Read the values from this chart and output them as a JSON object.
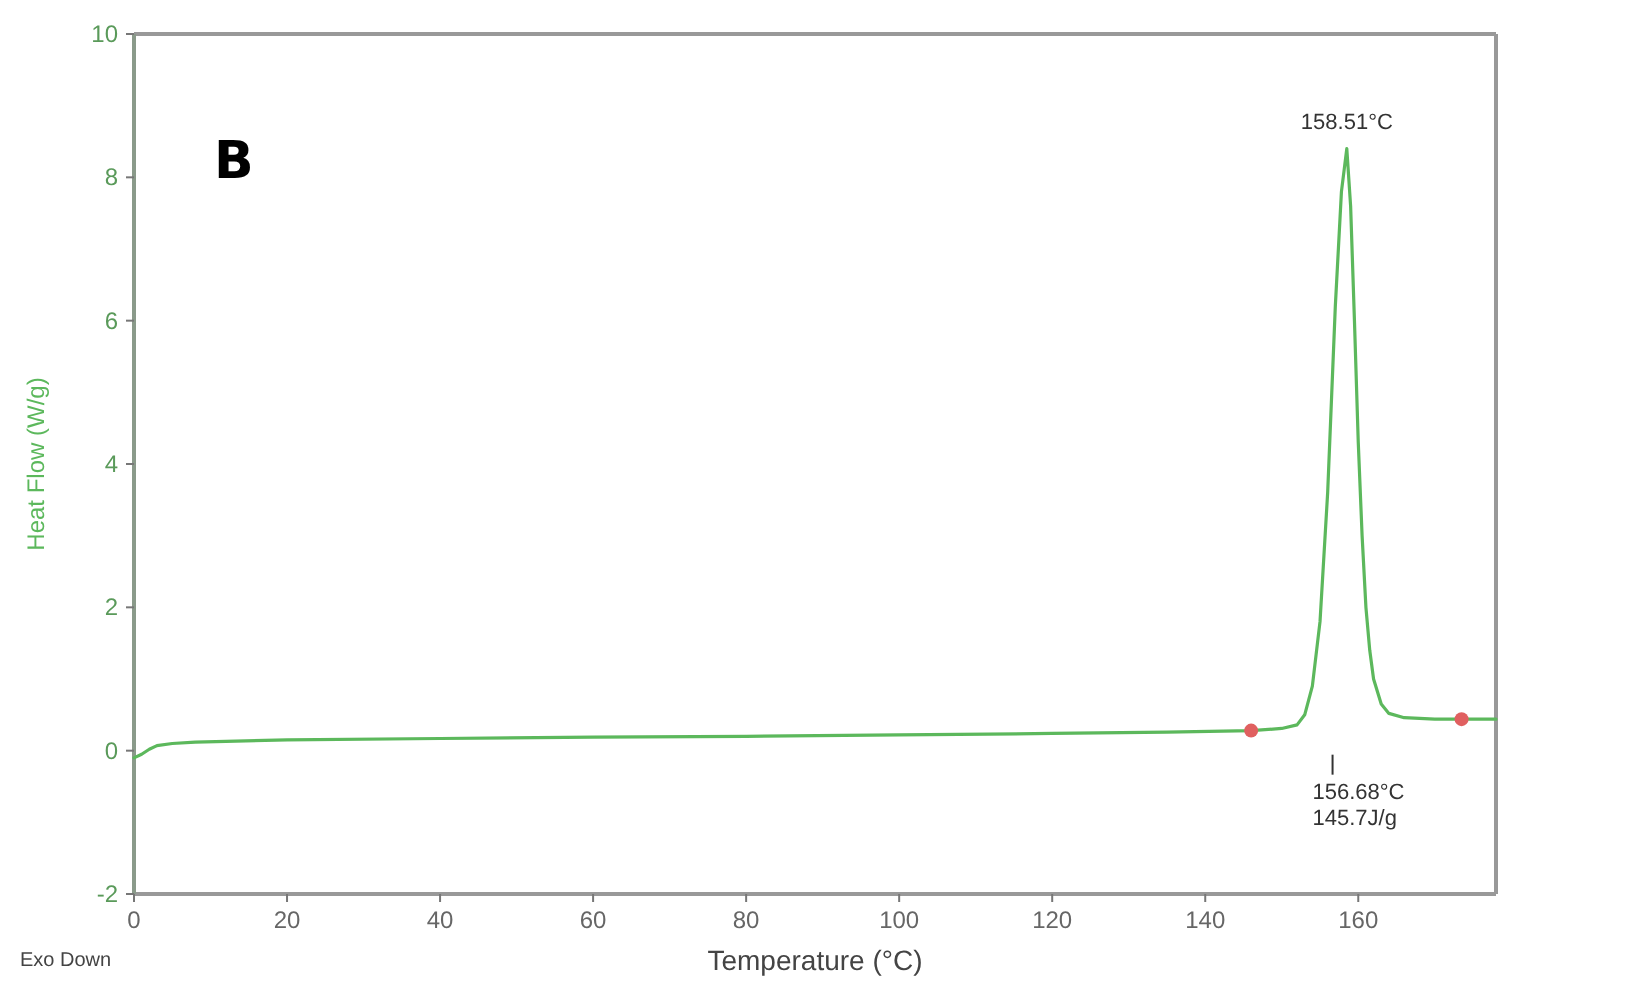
{
  "chart_data": {
    "type": "line",
    "xlabel": "Temperature (°C)",
    "ylabel": "Heat Flow (W/g)",
    "xlim": [
      0,
      178
    ],
    "ylim": [
      -2,
      10
    ],
    "xticks": [
      0,
      20,
      40,
      60,
      80,
      100,
      120,
      140,
      160
    ],
    "yticks": [
      -2,
      0,
      2,
      4,
      6,
      8,
      10
    ],
    "grid": false,
    "series": [
      {
        "color": "#5cb85c",
        "x": [
          0,
          1,
          2,
          3,
          5,
          8,
          12,
          20,
          40,
          60,
          80,
          100,
          120,
          135,
          146,
          150,
          152,
          153,
          154,
          155,
          156,
          157,
          157.8,
          158.5,
          159,
          159.5,
          160,
          160.5,
          161,
          161.5,
          162,
          163,
          164,
          166,
          170,
          174,
          178
        ],
        "values": [
          -0.1,
          -0.05,
          0.02,
          0.07,
          0.1,
          0.12,
          0.13,
          0.15,
          0.17,
          0.19,
          0.2,
          0.22,
          0.24,
          0.26,
          0.28,
          0.31,
          0.36,
          0.5,
          0.9,
          1.8,
          3.6,
          6.2,
          7.8,
          8.4,
          7.6,
          6.0,
          4.3,
          3.0,
          2.0,
          1.4,
          1.0,
          0.65,
          0.52,
          0.46,
          0.44,
          0.44,
          0.44
        ]
      },
      {
        "type": "scatter",
        "color": "#e06060",
        "x": [
          146,
          173.5
        ],
        "values": [
          0.28,
          0.44
        ]
      }
    ],
    "annotations": [
      "B",
      {
        "text": "158.51°C",
        "x": 158.51,
        "y": 8.4
      },
      "156.68°C\n145.7J/g",
      "Exo Down"
    ]
  }
}
